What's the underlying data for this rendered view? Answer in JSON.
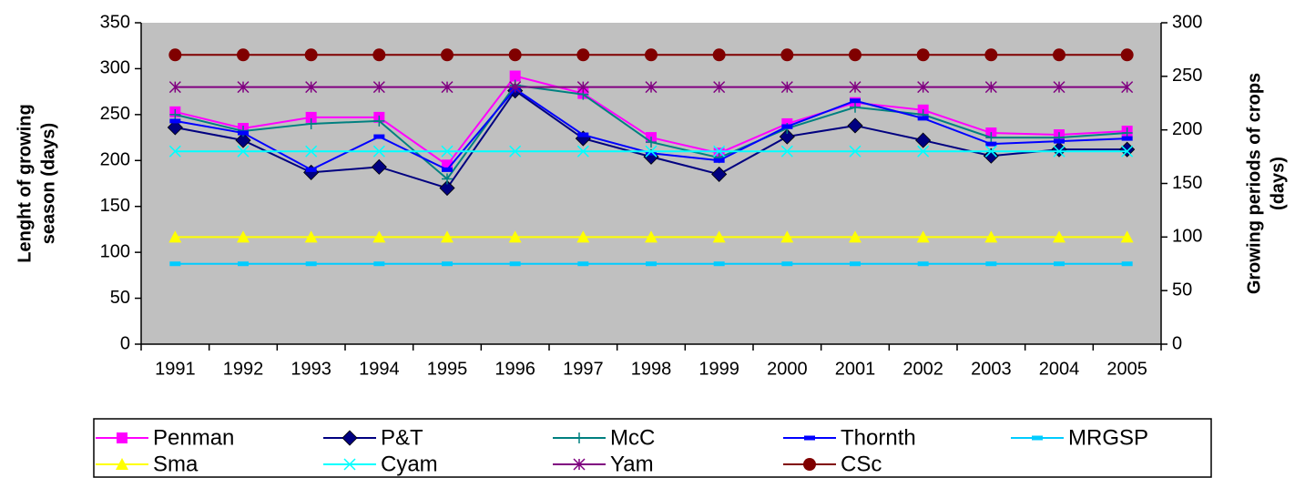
{
  "chart_data": {
    "type": "line",
    "categories": [
      "1991",
      "1992",
      "1993",
      "1994",
      "1995",
      "1996",
      "1997",
      "1998",
      "1999",
      "2000",
      "2001",
      "2002",
      "2003",
      "2004",
      "2005"
    ],
    "ylabel": [
      "Lenght of growing",
      "season (days)"
    ],
    "y2label": [
      "Growing periods of crops",
      "(days)"
    ],
    "ylim": [
      0,
      350
    ],
    "yticks": [
      0,
      50,
      100,
      150,
      200,
      250,
      300,
      350
    ],
    "y2lim": [
      0,
      300
    ],
    "y2ticks": [
      0,
      50,
      100,
      150,
      200,
      250,
      300
    ],
    "background": "#c0c0c0",
    "series": [
      {
        "name": "Penman",
        "color": "#ff00ff",
        "marker": "square",
        "values": [
          253,
          235,
          247,
          247,
          195,
          292,
          273,
          225,
          208,
          240,
          263,
          255,
          230,
          228,
          232
        ]
      },
      {
        "name": "P&T",
        "color": "#000080",
        "marker": "diamond",
        "values": [
          236,
          222,
          187,
          193,
          170,
          276,
          224,
          204,
          185,
          226,
          238,
          222,
          205,
          212,
          212
        ]
      },
      {
        "name": "McC",
        "color": "#008080",
        "marker": "plus",
        "values": [
          250,
          232,
          240,
          243,
          180,
          282,
          272,
          220,
          203,
          235,
          258,
          250,
          225,
          225,
          230
        ]
      },
      {
        "name": "Thornth",
        "color": "#0000ff",
        "marker": "dash",
        "values": [
          243,
          230,
          190,
          226,
          190,
          278,
          228,
          208,
          200,
          237,
          265,
          246,
          218,
          221,
          224
        ]
      },
      {
        "name": "MRGSP",
        "color": "#00ccff",
        "marker": "dash",
        "axis": "y2",
        "values": [
          75,
          75,
          75,
          75,
          75,
          75,
          75,
          75,
          75,
          75,
          75,
          75,
          75,
          75,
          75
        ]
      },
      {
        "name": "Sma",
        "color": "#ffff00",
        "marker": "triangle",
        "axis": "y2",
        "values": [
          100,
          100,
          100,
          100,
          100,
          100,
          100,
          100,
          100,
          100,
          100,
          100,
          100,
          100,
          100
        ]
      },
      {
        "name": "Cyam",
        "color": "#00ffff",
        "marker": "x",
        "axis": "y2",
        "values": [
          180,
          180,
          180,
          180,
          180,
          180,
          180,
          180,
          180,
          180,
          180,
          180,
          180,
          180,
          180
        ]
      },
      {
        "name": "Yam",
        "color": "#800080",
        "marker": "star",
        "axis": "y2",
        "values": [
          240,
          240,
          240,
          240,
          240,
          240,
          240,
          240,
          240,
          240,
          240,
          240,
          240,
          240,
          240
        ]
      },
      {
        "name": "CSc",
        "color": "#800000",
        "marker": "circle",
        "axis": "y2",
        "values": [
          270,
          270,
          270,
          270,
          270,
          270,
          270,
          270,
          270,
          270,
          270,
          270,
          270,
          270,
          270
        ]
      }
    ]
  }
}
